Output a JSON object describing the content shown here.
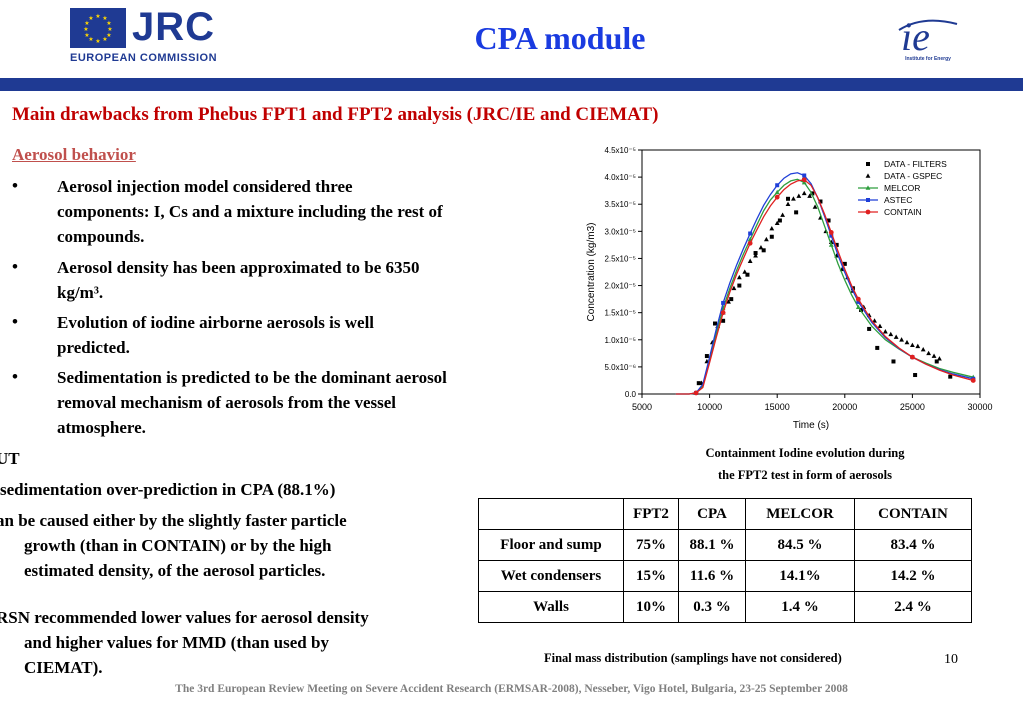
{
  "header": {
    "logo_left_name": "JRC",
    "logo_left_sub": "EUROPEAN COMMISSION",
    "title": "CPA module",
    "logo_right_caption": "Institute for Energy"
  },
  "subtitle": "Main drawbacks from Phebus FPT1 and FPT2 analysis (JRC/IE and CIEMAT)",
  "section_heading": "Aerosol behavior",
  "bullets": [
    {
      "marker": "•",
      "lines": [
        "Aerosol injection model considered three",
        "components: I, Cs and a mixture including the rest of",
        "compounds."
      ]
    },
    {
      "marker": "•",
      "lines": [
        "Aerosol density has been approximated to be 6350",
        "kg/m³."
      ]
    },
    {
      "marker": "•",
      "lines": [
        "Evolution of iodine airborne aerosols is well",
        "predicted."
      ]
    },
    {
      "marker": "•",
      "lines": [
        "Sedimentation is predicted to be the dominant aerosol",
        "removal mechanism of aerosols from the vessel",
        "atmosphere."
      ]
    }
  ],
  "lower_text": [
    "UT",
    "sedimentation over-prediction in CPA (88.1%)",
    "an be caused either by the slightly faster particle",
    "growth (than in CONTAIN) or by the high",
    "estimated density, of the aerosol particles.",
    "RSN recommended lower values for aerosol density",
    "and higher values for MMD (than used by",
    "CIEMAT)."
  ],
  "chart_caption": [
    "Containment Iodine evolution during",
    "the FPT2 test in form of aerosols"
  ],
  "chart_data": {
    "type": "line",
    "title": "",
    "xlabel": "Time (s)",
    "ylabel": "Concentration (kg/m3)",
    "xlim": [
      5000,
      30000
    ],
    "ylim": [
      0,
      4.5e-05
    ],
    "x_ticks": [
      5000,
      10000,
      15000,
      20000,
      25000,
      30000
    ],
    "x_tick_labels": [
      "5000",
      "10000",
      "15000",
      "20000",
      "25000",
      "30000"
    ],
    "y_ticks": [
      0,
      5e-06,
      1e-05,
      1.5e-05,
      2e-05,
      2.5e-05,
      3e-05,
      3.5e-05,
      4e-05,
      4.5e-05
    ],
    "y_tick_labels": [
      "0.0",
      "5.0x10⁻⁶",
      "1.0x10⁻⁵",
      "1.5x10⁻⁵",
      "2.0x10⁻⁵",
      "2.5x10⁻⁵",
      "3.0x10⁻⁵",
      "3.5x10⁻⁵",
      "4.0x10⁻⁵",
      "4.5x10⁻⁵"
    ],
    "legend_position": "top-right",
    "series": [
      {
        "name": "DATA - FILTERS",
        "style": "square-scatter",
        "color": "#000000",
        "x": [
          9200,
          9800,
          10400,
          11000,
          11600,
          12200,
          12800,
          13400,
          14000,
          14600,
          15200,
          15800,
          16400,
          17000,
          17600,
          18200,
          18800,
          19400,
          20000,
          20600,
          21200,
          21800,
          22400,
          23600,
          25200,
          26800,
          27800
        ],
        "y": [
          2e-06,
          7e-06,
          1.3e-05,
          1.35e-05,
          1.75e-05,
          2e-05,
          2.2e-05,
          2.6e-05,
          2.65e-05,
          2.9e-05,
          3.2e-05,
          3.6e-05,
          3.35e-05,
          3.95e-05,
          3.7e-05,
          3.55e-05,
          3.2e-05,
          2.75e-05,
          2.4e-05,
          1.95e-05,
          1.55e-05,
          1.2e-05,
          8.5e-06,
          6e-06,
          3.5e-06,
          6e-06,
          3.2e-06
        ]
      },
      {
        "name": "DATA - GSPEC",
        "style": "triangle-scatter",
        "color": "#000000",
        "x": [
          9400,
          9800,
          10200,
          10600,
          11000,
          11400,
          11800,
          12200,
          12600,
          13000,
          13400,
          13800,
          14200,
          14600,
          15000,
          15400,
          15800,
          16200,
          16600,
          17000,
          17400,
          17800,
          18200,
          18600,
          19000,
          19400,
          19800,
          20200,
          20600,
          21000,
          21400,
          21800,
          22200,
          22600,
          23000,
          23400,
          23800,
          24200,
          24600,
          25000,
          25400,
          25800,
          26200,
          26600,
          27000
        ],
        "y": [
          2e-06,
          6e-06,
          9.5e-06,
          1.25e-05,
          1.5e-05,
          1.7e-05,
          1.95e-05,
          2.15e-05,
          2.25e-05,
          2.45e-05,
          2.55e-05,
          2.7e-05,
          2.85e-05,
          3.05e-05,
          3.15e-05,
          3.3e-05,
          3.5e-05,
          3.6e-05,
          3.65e-05,
          3.7e-05,
          3.65e-05,
          3.45e-05,
          3.25e-05,
          3e-05,
          2.8e-05,
          2.55e-05,
          2.3e-05,
          2.15e-05,
          1.9e-05,
          1.7e-05,
          1.6e-05,
          1.45e-05,
          1.35e-05,
          1.25e-05,
          1.15e-05,
          1.1e-05,
          1.05e-05,
          1e-05,
          9.5e-06,
          9e-06,
          8.8e-06,
          8.2e-06,
          7.5e-06,
          7e-06,
          6.5e-06
        ]
      },
      {
        "name": "MELCOR",
        "style": "line-triangle",
        "color": "#2e9e3e",
        "x": [
          7500,
          8500,
          9000,
          9500,
          10000,
          10500,
          11000,
          11500,
          12000,
          12500,
          13000,
          13500,
          14000,
          14500,
          15000,
          15500,
          16000,
          16500,
          17000,
          17500,
          18000,
          18500,
          19000,
          19500,
          20000,
          20500,
          21000,
          22000,
          23000,
          24000,
          25000,
          26000,
          27000,
          28000,
          29500
        ],
        "y": [
          0,
          0,
          2e-07,
          1.5e-06,
          6e-06,
          1.12e-05,
          1.58e-05,
          1.95e-05,
          2.28e-05,
          2.58e-05,
          2.85e-05,
          3.12e-05,
          3.38e-05,
          3.58e-05,
          3.72e-05,
          3.85e-05,
          3.93e-05,
          3.96e-05,
          3.9e-05,
          3.72e-05,
          3.45e-05,
          3.1e-05,
          2.75e-05,
          2.4e-05,
          2.1e-05,
          1.83e-05,
          1.6e-05,
          1.25e-05,
          1e-05,
          8.3e-06,
          6.8e-06,
          5.7e-06,
          4.7e-06,
          4e-06,
          3.1e-06
        ]
      },
      {
        "name": "ASTEC",
        "style": "line-square",
        "color": "#1f3fd8",
        "x": [
          7500,
          8500,
          9000,
          9500,
          10000,
          10500,
          11000,
          11500,
          12000,
          12500,
          13000,
          13500,
          14000,
          14500,
          15000,
          15500,
          16000,
          16500,
          17000,
          17500,
          18000,
          18500,
          19000,
          19500,
          20000,
          20500,
          21000,
          22000,
          23000,
          24000,
          25000,
          26000,
          27000,
          28000,
          29500
        ],
        "y": [
          0,
          0,
          2e-07,
          1.8e-06,
          6.8e-06,
          1.2e-05,
          1.68e-05,
          2.05e-05,
          2.38e-05,
          2.68e-05,
          2.96e-05,
          3.23e-05,
          3.48e-05,
          3.68e-05,
          3.85e-05,
          3.98e-05,
          4.06e-05,
          4.08e-05,
          4.03e-05,
          3.88e-05,
          3.62e-05,
          3.28e-05,
          2.92e-05,
          2.56e-05,
          2.24e-05,
          1.95e-05,
          1.7e-05,
          1.32e-05,
          1.04e-05,
          8.4e-06,
          6.8e-06,
          5.5e-06,
          4.5e-06,
          3.7e-06,
          2.8e-06
        ]
      },
      {
        "name": "CONTAIN",
        "style": "line-circle",
        "color": "#e02020",
        "x": [
          7500,
          8500,
          9000,
          9500,
          10000,
          10500,
          11000,
          11500,
          12000,
          12500,
          13000,
          13500,
          14000,
          14500,
          15000,
          15500,
          16000,
          16500,
          17000,
          17500,
          18000,
          18500,
          19000,
          19500,
          20000,
          20500,
          21000,
          22000,
          23000,
          24000,
          25000,
          26000,
          27000,
          28000,
          29500
        ],
        "y": [
          0,
          0,
          2e-07,
          1.2e-06,
          5.8e-06,
          1.05e-05,
          1.5e-05,
          1.88e-05,
          2.21e-05,
          2.5e-05,
          2.78e-05,
          3.03e-05,
          3.27e-05,
          3.47e-05,
          3.63e-05,
          3.77e-05,
          3.87e-05,
          3.93e-05,
          3.95e-05,
          3.85e-05,
          3.62e-05,
          3.32e-05,
          2.98e-05,
          2.63e-05,
          2.3e-05,
          2e-05,
          1.75e-05,
          1.35e-05,
          1.06e-05,
          8.5e-06,
          6.8e-06,
          5.5e-06,
          4.4e-06,
          3.5e-06,
          2.5e-06
        ]
      }
    ]
  },
  "table": {
    "headers": [
      "",
      "FPT2",
      "CPA",
      "MELCOR",
      "CONTAIN"
    ],
    "rows": [
      [
        "Floor and sump",
        "75%",
        "88.1 %",
        "84.5 %",
        "83.4 %"
      ],
      [
        "Wet condensers",
        "15%",
        "11.6 %",
        "14.1%",
        "14.2 %"
      ],
      [
        "Walls",
        "10%",
        "0.3 %",
        "1.4 %",
        "2.4 %"
      ]
    ]
  },
  "table_caption": "Final mass distribution (samplings have not considered)",
  "page_number": "10",
  "footer": "The 3rd European Review Meeting on Severe Accident Research (ERMSAR-2008), Nesseber, Vigo Hotel, Bulgaria, 23-25 September 2008",
  "colors": {
    "brand_blue": "#1f3a93",
    "title_blue": "#1a3be0",
    "subtitle_red": "#c00000"
  }
}
